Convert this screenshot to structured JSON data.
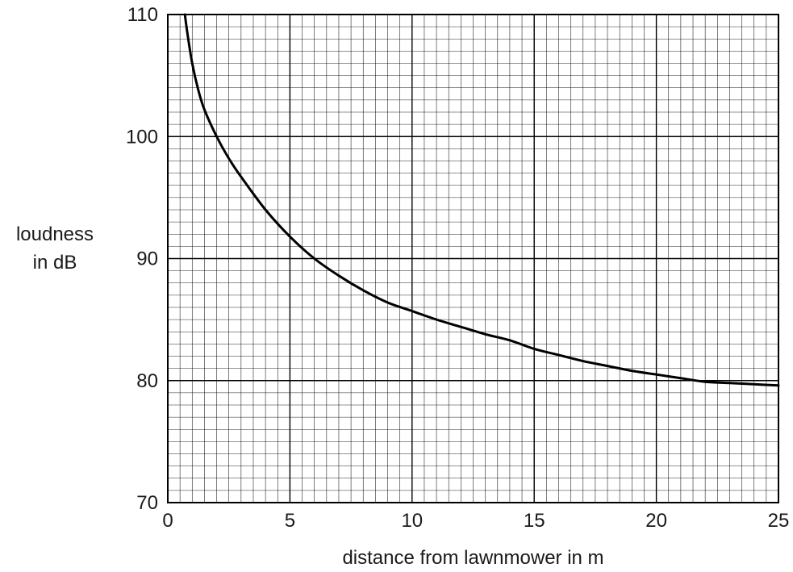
{
  "chart_data": {
    "type": "line",
    "title": "",
    "xlabel": "distance from lawnmower in m",
    "ylabel": [
      "loudness",
      "in dB"
    ],
    "xlim": [
      0,
      25
    ],
    "ylim": [
      70,
      110
    ],
    "x_ticks": [
      0,
      5,
      10,
      15,
      20,
      25
    ],
    "y_ticks": [
      70,
      80,
      90,
      100,
      110
    ],
    "x_minor_step": 0.5,
    "y_minor_step": 1,
    "grid": true,
    "line_color": "#000000",
    "grid_major_color": "#000000",
    "grid_minor_color": "#000000",
    "series": [
      {
        "x": [
          0.7,
          0.8,
          1,
          1.25,
          1.5,
          2,
          2.5,
          3,
          4,
          5,
          6,
          7,
          8,
          9,
          10,
          11,
          12,
          13,
          14,
          15,
          16,
          17,
          18,
          19,
          20,
          21,
          22,
          23,
          24,
          25
        ],
        "y": [
          110,
          108.5,
          106,
          103.8,
          102.2,
          100,
          98.2,
          96.7,
          94,
          91.8,
          90,
          88.6,
          87.4,
          86.4,
          85.7,
          85,
          84.4,
          83.8,
          83.3,
          82.6,
          82.1,
          81.6,
          81.2,
          80.8,
          80.5,
          80.2,
          79.9,
          79.8,
          79.7,
          79.6
        ]
      }
    ]
  }
}
